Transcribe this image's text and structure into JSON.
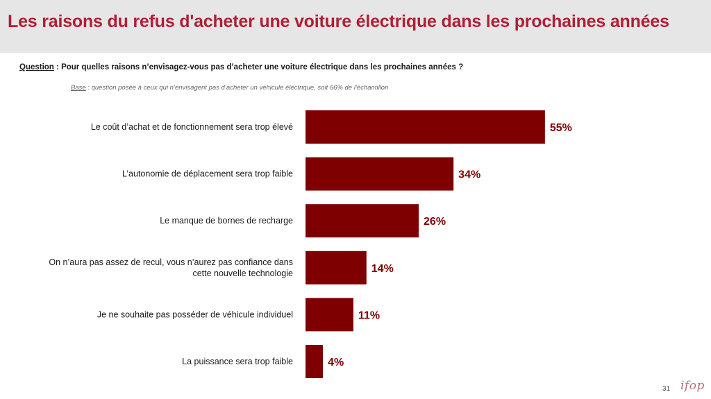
{
  "header": {
    "title": "Les raisons du refus d'acheter une voiture électrique dans les prochaines années"
  },
  "question": {
    "label": "Question",
    "separator": " :  ",
    "text": "Pour quelles raisons n’envisagez-vous pas d’acheter une voiture électrique dans les prochaines années ?"
  },
  "base": {
    "label": "Base",
    "text": " : question posée à ceux qui n’envisagent pas d’acheter un véhicule électrique, soit 66% de l’échantillon"
  },
  "colors": {
    "title": "#b21e35",
    "bar": "#7f0000",
    "value_label": "#7f0000"
  },
  "chart_data": {
    "type": "bar",
    "orientation": "horizontal",
    "categories": [
      [
        "Le coût d’achat et de fonctionnement sera trop élevé"
      ],
      [
        "L’autonomie de déplacement sera trop faible"
      ],
      [
        "Le manque de bornes de recharge"
      ],
      [
        "On n’aura pas assez de recul, vous n’aurez pas confiance dans",
        "cette nouvelle technologie"
      ],
      [
        "Je ne souhaite pas posséder de véhicule individuel"
      ],
      [
        "La puissance sera trop faible"
      ]
    ],
    "values": [
      55,
      34,
      26,
      14,
      11,
      4
    ],
    "value_labels": [
      "55%",
      "34%",
      "26%",
      "14%",
      "11%",
      "4%"
    ],
    "xlim": [
      0,
      100
    ],
    "grid": false,
    "legend": "none"
  },
  "footer": {
    "page_number": "31",
    "logo": "ifop"
  }
}
